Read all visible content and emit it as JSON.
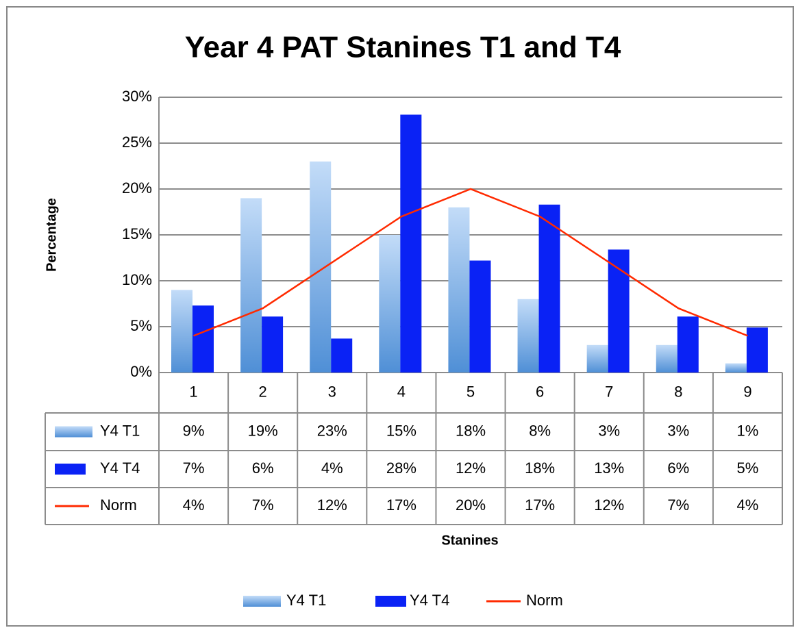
{
  "chart_data": {
    "type": "bar",
    "title": "Year 4 PAT Stanines T1 and T4",
    "x_label": "Stanines",
    "y_label": "Percentage",
    "categories": [
      "1",
      "2",
      "3",
      "4",
      "5",
      "6",
      "7",
      "8",
      "9"
    ],
    "series": [
      {
        "name": "Y4 T1",
        "type": "bar",
        "color": "#7fb1ec",
        "values": [
          9,
          19,
          23,
          15,
          18,
          8,
          3,
          3,
          1
        ],
        "value_labels": [
          "9%",
          "19%",
          "23%",
          "15%",
          "18%",
          "8%",
          "3%",
          "3%",
          "1%"
        ]
      },
      {
        "name": "Y4 T4",
        "type": "bar",
        "color": "#0a22f5",
        "values": [
          7.3,
          6.1,
          3.7,
          28.1,
          12.2,
          18.3,
          13.4,
          6.1,
          4.9
        ],
        "value_labels": [
          "7%",
          "6%",
          "4%",
          "28%",
          "12%",
          "18%",
          "13%",
          "6%",
          "5%"
        ]
      },
      {
        "name": "Norm",
        "type": "line",
        "color": "#ff2a00",
        "values": [
          4,
          7,
          12,
          17,
          20,
          17,
          12,
          7,
          4
        ],
        "value_labels": [
          "4%",
          "7%",
          "12%",
          "17%",
          "20%",
          "17%",
          "12%",
          "7%",
          "4%"
        ]
      }
    ],
    "ylim": [
      0,
      30
    ],
    "yticks": [
      {
        "value": 0,
        "label": "0%"
      },
      {
        "value": 5,
        "label": "5%"
      },
      {
        "value": 10,
        "label": "10%"
      },
      {
        "value": 15,
        "label": "15%"
      },
      {
        "value": 20,
        "label": "20%"
      },
      {
        "value": 25,
        "label": "25%"
      },
      {
        "value": 30,
        "label": "30%"
      }
    ],
    "grid": true,
    "legend": "bottom"
  }
}
